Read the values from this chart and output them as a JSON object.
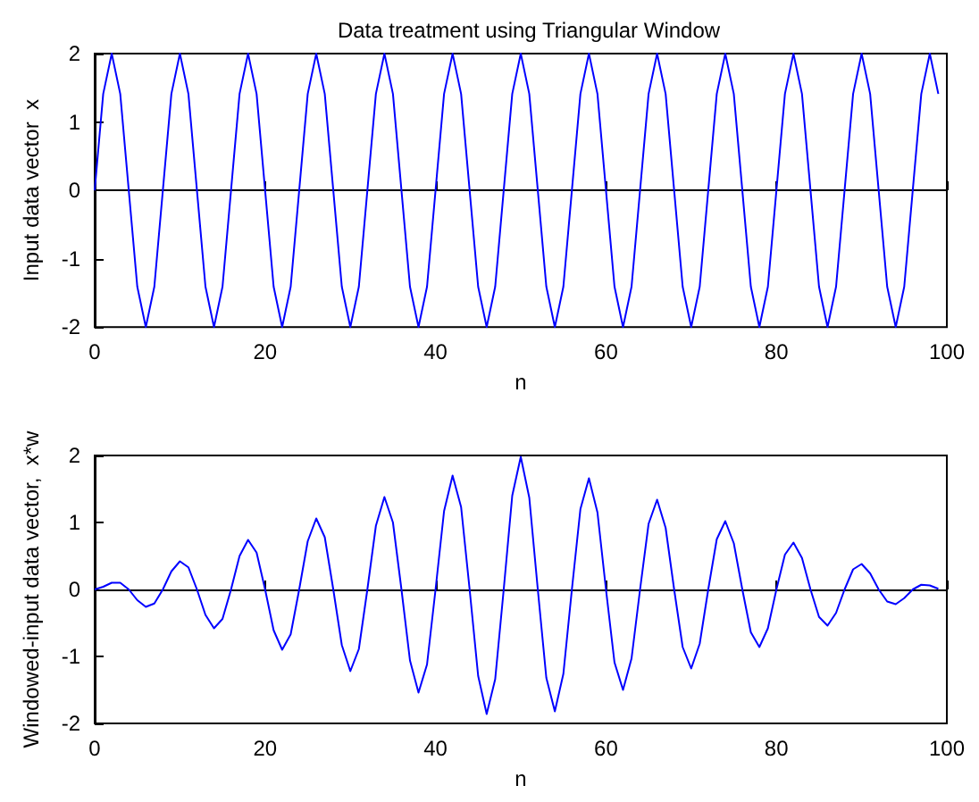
{
  "chart_data": [
    {
      "type": "line",
      "title": "Data treatment using Triangular Window",
      "xlabel": "n",
      "ylabel": "Input data vector  x",
      "xlim": [
        0,
        100
      ],
      "xticks": [
        0,
        20,
        40,
        60,
        80,
        100
      ],
      "ylim": [
        -2,
        2
      ],
      "yticks": [
        -2,
        -1,
        0,
        1,
        2
      ],
      "series": [
        {
          "color": "#0000ff",
          "x": [
            0,
            1,
            2,
            3,
            4,
            5,
            6,
            7,
            8,
            9,
            10,
            11,
            12,
            13,
            14,
            15,
            16,
            17,
            18,
            19,
            20,
            21,
            22,
            23,
            24,
            25,
            26,
            27,
            28,
            29,
            30,
            31,
            32,
            33,
            34,
            35,
            36,
            37,
            38,
            39,
            40,
            41,
            42,
            43,
            44,
            45,
            46,
            47,
            48,
            49,
            50,
            51,
            52,
            53,
            54,
            55,
            56,
            57,
            58,
            59,
            60,
            61,
            62,
            63,
            64,
            65,
            66,
            67,
            68,
            69,
            70,
            71,
            72,
            73,
            74,
            75,
            76,
            77,
            78,
            79,
            80,
            81,
            82,
            83,
            84,
            85,
            86,
            87,
            88,
            89,
            90,
            91,
            92,
            93,
            94,
            95,
            96,
            97,
            98,
            99
          ],
          "values": [
            0,
            1.41,
            2,
            1.41,
            0,
            -1.41,
            -2,
            -1.41,
            0,
            1.41,
            2,
            1.41,
            0,
            -1.41,
            -2,
            -1.41,
            0,
            1.41,
            2,
            1.41,
            0,
            -1.41,
            -2,
            -1.41,
            0,
            1.41,
            2,
            1.41,
            0,
            -1.41,
            -2,
            -1.41,
            0,
            1.41,
            2,
            1.41,
            0,
            -1.41,
            -2,
            -1.41,
            0,
            1.41,
            2,
            1.41,
            0,
            -1.41,
            -2,
            -1.41,
            0,
            1.41,
            2,
            1.41,
            0,
            -1.41,
            -2,
            -1.41,
            0,
            1.41,
            2,
            1.41,
            0,
            -1.41,
            -2,
            -1.41,
            0,
            1.41,
            2,
            1.41,
            0,
            -1.41,
            -2,
            -1.41,
            0,
            1.41,
            2,
            1.41,
            0,
            -1.41,
            -2,
            -1.41,
            0,
            1.41,
            2,
            1.41,
            0,
            -1.41,
            -2,
            -1.41,
            0,
            1.41,
            2,
            1.41,
            0,
            -1.41,
            -2,
            -1.41,
            0,
            1.41,
            2,
            1.41
          ]
        }
      ]
    },
    {
      "type": "line",
      "xlabel": "n",
      "ylabel": "Windowed-input data vector,  x*w",
      "xlim": [
        0,
        100
      ],
      "xticks": [
        0,
        20,
        40,
        60,
        80,
        100
      ],
      "ylim": [
        -2,
        2
      ],
      "yticks": [
        -2,
        -1,
        0,
        1,
        2
      ],
      "series": [
        {
          "color": "#0000ff",
          "x": [
            0,
            1,
            2,
            3,
            4,
            5,
            6,
            7,
            8,
            9,
            10,
            11,
            12,
            13,
            14,
            15,
            16,
            17,
            18,
            19,
            20,
            21,
            22,
            23,
            24,
            25,
            26,
            27,
            28,
            29,
            30,
            31,
            32,
            33,
            34,
            35,
            36,
            37,
            38,
            39,
            40,
            41,
            42,
            43,
            44,
            45,
            46,
            47,
            48,
            49,
            50,
            51,
            52,
            53,
            54,
            55,
            56,
            57,
            58,
            59,
            60,
            61,
            62,
            63,
            64,
            65,
            66,
            67,
            68,
            69,
            70,
            71,
            72,
            73,
            74,
            75,
            76,
            77,
            78,
            79,
            80,
            81,
            82,
            83,
            84,
            85,
            86,
            87,
            88,
            89,
            90,
            91,
            92,
            93,
            94,
            95,
            96,
            97,
            98,
            99
          ],
          "values": [
            0,
            0.04,
            0.1,
            0.1,
            0,
            -0.16,
            -0.26,
            -0.21,
            0,
            0.27,
            0.42,
            0.33,
            0,
            -0.38,
            -0.58,
            -0.44,
            0,
            0.5,
            0.74,
            0.55,
            0,
            -0.61,
            -0.9,
            -0.67,
            0,
            0.72,
            1.06,
            0.78,
            0,
            -0.83,
            -1.22,
            -0.89,
            0,
            0.95,
            1.38,
            1,
            0,
            -1.06,
            -1.54,
            -1.12,
            0,
            1.17,
            1.7,
            1.23,
            0,
            -1.29,
            -1.86,
            -1.34,
            0,
            1.4,
            1.98,
            1.37,
            0,
            -1.32,
            -1.82,
            -1.26,
            0,
            1.2,
            1.66,
            1.15,
            0,
            -1.09,
            -1.5,
            -1.03,
            0,
            0.98,
            1.34,
            0.92,
            0,
            -0.86,
            -1.18,
            -0.81,
            0,
            0.75,
            1.02,
            0.69,
            0,
            -0.64,
            -0.86,
            -0.58,
            0,
            0.52,
            0.7,
            0.47,
            0,
            -0.41,
            -0.54,
            -0.35,
            0,
            0.3,
            0.38,
            0.24,
            0,
            -0.18,
            -0.22,
            -0.13,
            0,
            0.07,
            0.06,
            0.01
          ]
        }
      ]
    }
  ]
}
